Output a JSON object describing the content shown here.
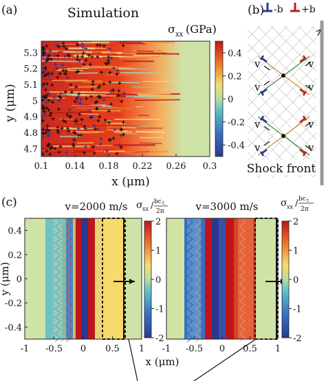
{
  "panel_a": {
    "label": "(a)",
    "title": "Simulation",
    "colorbar_label": "σ",
    "colorbar_sub": "xx",
    "colorbar_unit": "(GPa)",
    "colorbar_ticks": [
      "0.4",
      "0.2",
      "0",
      "-0.2",
      "-0.4"
    ],
    "xlabel": "x (μm)",
    "ylabel": "y (μm)",
    "xticks": [
      "0.1",
      "0.14",
      "0.18",
      "0.22",
      "0.26",
      "0.3"
    ],
    "yticks": [
      "5.3",
      "5.2",
      "5.1",
      "5",
      "4.9",
      "4.8",
      "4.7"
    ]
  },
  "panel_b": {
    "label": "(b)",
    "neg_label": "-b",
    "pos_label": "+b",
    "velocity_label": "v",
    "shock_label": "Shock front"
  },
  "panel_c": {
    "label": "(c)",
    "ylabel": "y (μm)",
    "xlabel": "x (μm)",
    "left_title": "v=2000 m/s",
    "right_title": "v=3000 m/s",
    "xticks": [
      "-1",
      "-0.5",
      "0",
      "0.5",
      "1"
    ],
    "yticks": [
      "0.4",
      "0.2",
      "0",
      "-0.2",
      "-0.4"
    ],
    "colorbar_ticks": [
      "2",
      "1",
      "0",
      "-1",
      "-2"
    ],
    "colorbar_label": "σ",
    "colorbar_sub": "xx",
    "colorbar_num": "bc",
    "colorbar_num_sub": "t",
    "colorbar_den": "2π"
  },
  "chart_data": [
    {
      "type": "heatmap",
      "panel": "a",
      "title": "Simulation",
      "xlabel": "x (μm)",
      "ylabel": "y (μm)",
      "xlim": [
        0.1,
        0.3
      ],
      "ylim": [
        4.65,
        5.37
      ],
      "colorbar_range": [
        -0.5,
        0.5
      ]
    },
    {
      "type": "heatmap",
      "panel": "c-left",
      "title": "v=2000 m/s",
      "xlabel": "x (μm)",
      "ylabel": "y (μm)",
      "xlim": [
        -1,
        1
      ],
      "ylim": [
        -0.5,
        0.5
      ],
      "colorbar_range": [
        -2,
        2
      ]
    },
    {
      "type": "heatmap",
      "panel": "c-right",
      "title": "v=3000 m/s",
      "xlabel": "x (μm)",
      "xlim": [
        -1,
        1
      ],
      "ylim": [
        -0.5,
        0.5
      ],
      "colorbar_range": [
        -2,
        2
      ]
    }
  ]
}
